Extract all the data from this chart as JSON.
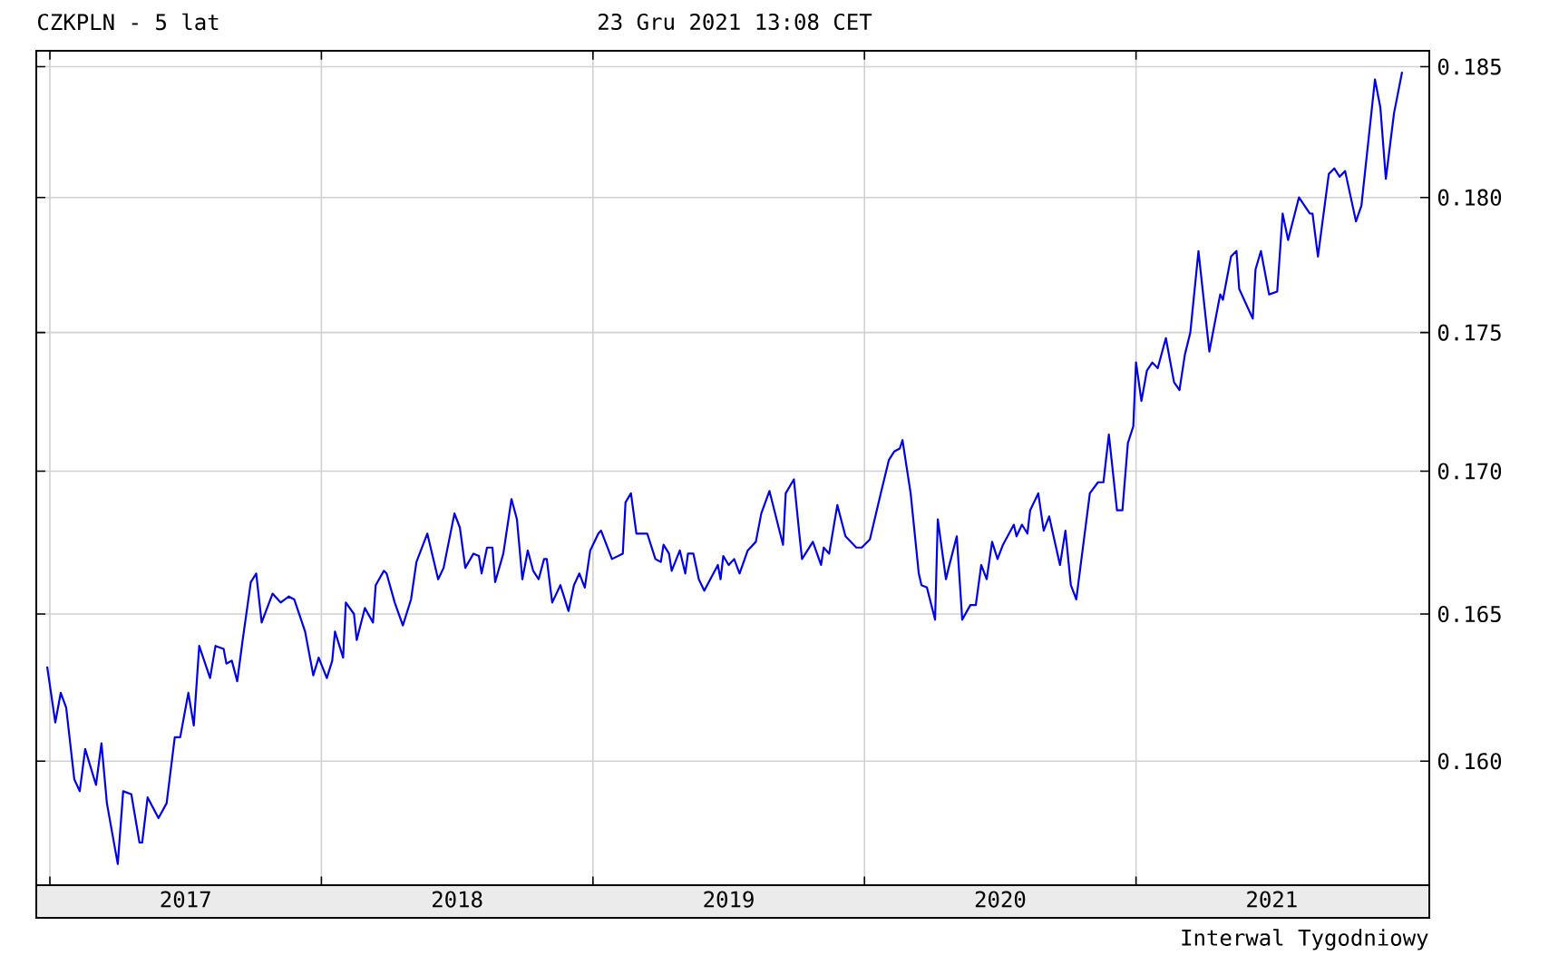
{
  "chart_data": {
    "type": "line",
    "title": "CZKPLN - 5 lat",
    "subtitle": "23 Gru 2021 13:08 CET",
    "annotations": [
      "Interwal Tygodniowy"
    ],
    "x": [
      2016.99,
      2017.02,
      2017.04,
      2017.06,
      2017.09,
      2017.11,
      2017.13,
      2017.17,
      2017.19,
      2017.21,
      2017.25,
      2017.27,
      2017.3,
      2017.33,
      2017.34,
      2017.36,
      2017.4,
      2017.43,
      2017.46,
      2017.48,
      2017.51,
      2017.53,
      2017.55,
      2017.59,
      2017.61,
      2017.64,
      2017.65,
      2017.67,
      2017.69,
      2017.71,
      2017.74,
      2017.76,
      2017.78,
      2017.82,
      2017.85,
      2017.88,
      2017.9,
      2017.94,
      2017.97,
      2017.99,
      2018.02,
      2018.04,
      2018.05,
      2018.08,
      2018.09,
      2018.12,
      2018.13,
      2018.16,
      2018.19,
      2018.2,
      2018.23,
      2018.24,
      2018.27,
      2018.3,
      2018.33,
      2018.35,
      2018.39,
      2018.43,
      2018.45,
      2018.49,
      2018.51,
      2018.53,
      2018.56,
      2018.58,
      2018.59,
      2018.61,
      2018.63,
      2018.64,
      2018.67,
      2018.7,
      2018.72,
      2018.74,
      2018.76,
      2018.78,
      2018.8,
      2018.82,
      2018.83,
      2018.85,
      2018.88,
      2018.91,
      2018.93,
      2018.95,
      2018.97,
      2018.99,
      2019.02,
      2019.03,
      2019.07,
      2019.11,
      2019.12,
      2019.14,
      2019.16,
      2019.2,
      2019.23,
      2019.25,
      2019.26,
      2019.28,
      2019.29,
      2019.32,
      2019.34,
      2019.35,
      2019.37,
      2019.39,
      2019.41,
      2019.46,
      2019.47,
      2019.48,
      2019.5,
      2019.52,
      2019.54,
      2019.57,
      2019.6,
      2019.62,
      2019.65,
      2019.7,
      2019.71,
      2019.74,
      2019.76,
      2019.77,
      2019.81,
      2019.84,
      2019.85,
      2019.87,
      2019.9,
      2019.93,
      2019.97,
      2019.99,
      2020.02,
      2020.06,
      2020.09,
      2020.11,
      2020.13,
      2020.14,
      2020.17,
      2020.2,
      2020.21,
      2020.23,
      2020.26,
      2020.27,
      2020.3,
      2020.31,
      2020.34,
      2020.36,
      2020.39,
      2020.41,
      2020.43,
      2020.45,
      2020.47,
      2020.49,
      2020.51,
      2020.55,
      2020.56,
      2020.58,
      2020.6,
      2020.61,
      2020.64,
      2020.66,
      2020.68,
      2020.72,
      2020.74,
      2020.76,
      2020.78,
      2020.83,
      2020.86,
      2020.88,
      2020.9,
      2020.93,
      2020.95,
      2020.97,
      2020.99,
      2021.0,
      2021.02,
      2021.04,
      2021.06,
      2021.08,
      2021.11,
      2021.14,
      2021.16,
      2021.18,
      2021.2,
      2021.23,
      2021.27,
      2021.31,
      2021.32,
      2021.35,
      2021.37,
      2021.38,
      2021.43,
      2021.44,
      2021.46,
      2021.49,
      2021.52,
      2021.54,
      2021.56,
      2021.6,
      2021.64,
      2021.65,
      2021.67,
      2021.71,
      2021.73,
      2021.75,
      2021.77,
      2021.81,
      2021.83,
      2021.88,
      2021.9,
      2021.92,
      2021.95,
      2021.98
    ],
    "series": [
      {
        "color": "#0000e6",
        "values": [
          0.1632,
          0.1613,
          0.1623,
          0.1618,
          0.1594,
          0.159,
          0.1604,
          0.1592,
          0.1606,
          0.1586,
          0.1566,
          0.159,
          0.1589,
          0.1573,
          0.1573,
          0.1588,
          0.1581,
          0.1586,
          0.1608,
          0.1608,
          0.1623,
          0.1612,
          0.1639,
          0.1628,
          0.1639,
          0.1638,
          0.1633,
          0.1634,
          0.1627,
          0.1641,
          0.1661,
          0.1664,
          0.1647,
          0.1657,
          0.1654,
          0.1656,
          0.1655,
          0.1644,
          0.1629,
          0.1635,
          0.1628,
          0.1634,
          0.1644,
          0.1635,
          0.1654,
          0.165,
          0.1641,
          0.1652,
          0.1647,
          0.166,
          0.1665,
          0.1664,
          0.1654,
          0.1646,
          0.1655,
          0.1668,
          0.1678,
          0.1662,
          0.1666,
          0.1685,
          0.168,
          0.1666,
          0.1671,
          0.167,
          0.1664,
          0.1673,
          0.1673,
          0.1661,
          0.1671,
          0.169,
          0.1683,
          0.1662,
          0.1672,
          0.1665,
          0.1662,
          0.1669,
          0.1669,
          0.1654,
          0.166,
          0.1651,
          0.166,
          0.1664,
          0.1659,
          0.1672,
          0.1678,
          0.1679,
          0.1669,
          0.1671,
          0.1689,
          0.1692,
          0.1678,
          0.1678,
          0.1669,
          0.1668,
          0.1674,
          0.1671,
          0.1665,
          0.1672,
          0.1664,
          0.1671,
          0.1671,
          0.1662,
          0.1658,
          0.1667,
          0.1662,
          0.167,
          0.1667,
          0.1669,
          0.1664,
          0.1672,
          0.1675,
          0.1685,
          0.1693,
          0.1674,
          0.1692,
          0.1697,
          0.1678,
          0.1669,
          0.1675,
          0.1667,
          0.1673,
          0.1671,
          0.1688,
          0.1677,
          0.1673,
          0.1673,
          0.1676,
          0.1692,
          0.1704,
          0.1707,
          0.1708,
          0.1711,
          0.1692,
          0.1664,
          0.166,
          0.1659,
          0.1648,
          0.1683,
          0.1662,
          0.1666,
          0.1677,
          0.1648,
          0.1653,
          0.1653,
          0.1667,
          0.1662,
          0.1675,
          0.1669,
          0.1674,
          0.1681,
          0.1677,
          0.1681,
          0.1678,
          0.1686,
          0.1692,
          0.1679,
          0.1684,
          0.1667,
          0.1679,
          0.166,
          0.1655,
          0.1692,
          0.1696,
          0.1696,
          0.1713,
          0.1686,
          0.1686,
          0.171,
          0.1716,
          0.1739,
          0.1725,
          0.1736,
          0.1739,
          0.1737,
          0.1748,
          0.1732,
          0.1729,
          0.1742,
          0.175,
          0.178,
          0.1743,
          0.1764,
          0.1762,
          0.1778,
          0.178,
          0.1766,
          0.1755,
          0.1773,
          0.178,
          0.1764,
          0.1765,
          0.1794,
          0.1784,
          0.18,
          0.1794,
          0.1794,
          0.1778,
          0.1809,
          0.1811,
          0.1808,
          0.181,
          0.1791,
          0.1797,
          0.1845,
          0.1834,
          0.1807,
          0.1832,
          0.1848
        ]
      }
    ],
    "xlim": [
      2016.95,
      2022.08
    ],
    "ylim": [
      0.1559,
      0.1856
    ],
    "xticks": [
      {
        "value": 2017,
        "label": null
      },
      {
        "value": 2017.5,
        "label": "2017"
      },
      {
        "value": 2018,
        "label": null
      },
      {
        "value": 2018.5,
        "label": "2018"
      },
      {
        "value": 2019,
        "label": null
      },
      {
        "value": 2019.5,
        "label": "2019"
      },
      {
        "value": 2020,
        "label": null
      },
      {
        "value": 2020.5,
        "label": "2020"
      },
      {
        "value": 2021,
        "label": null
      },
      {
        "value": 2021.5,
        "label": "2021"
      }
    ],
    "yticks": [
      {
        "value": 0.16,
        "label": "0.160"
      },
      0.165,
      {
        "value": 0.17,
        "label": "0.170"
      },
      0.175,
      {
        "value": 0.18,
        "label": "0.180"
      },
      0.185
    ],
    "log": true,
    "grid": true,
    "marker": "none",
    "line_style": "solid"
  }
}
